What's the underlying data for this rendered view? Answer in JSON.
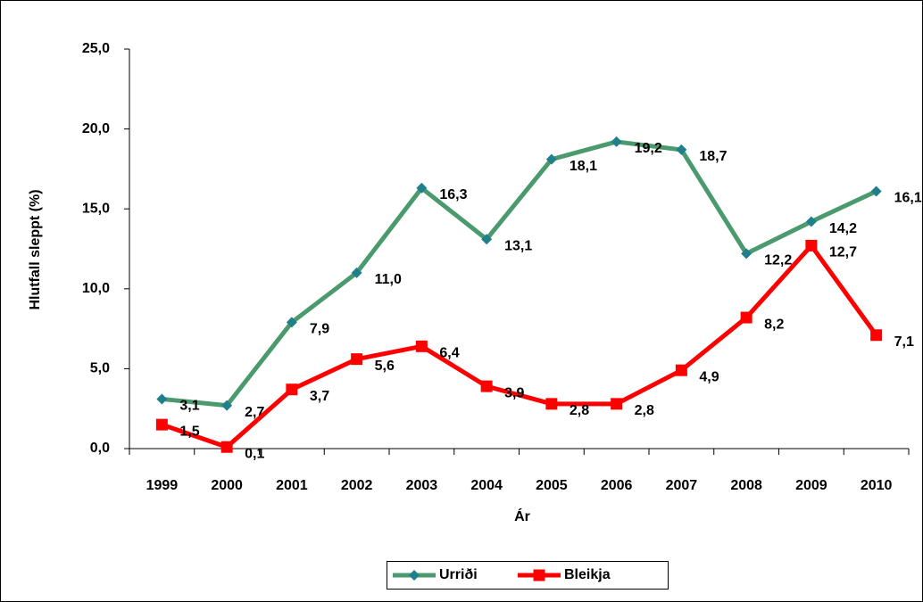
{
  "chart_data": {
    "type": "line",
    "x_label": "Ár",
    "y_label": "Hlutfall sleppt (%)",
    "categories": [
      "1999",
      "2000",
      "2001",
      "2002",
      "2003",
      "2004",
      "2005",
      "2006",
      "2007",
      "2008",
      "2009",
      "2010"
    ],
    "series": [
      {
        "name": "Urriði",
        "color": "#4a9a6e",
        "marker_color": "#1f7f8a",
        "marker": "diamond",
        "values": [
          3.1,
          2.7,
          7.9,
          11.0,
          16.3,
          13.1,
          18.1,
          19.2,
          18.7,
          12.2,
          14.2,
          16.1
        ],
        "value_labels": [
          "3,1",
          "2,7",
          "7,9",
          "11,0",
          "16,3",
          "13,1",
          "18,1",
          "19,2",
          "18,7",
          "12,2",
          "14,2",
          "16,1"
        ]
      },
      {
        "name": "Bleikja",
        "color": "#ff0000",
        "marker_color": "#ff0000",
        "marker": "square",
        "values": [
          1.5,
          0.1,
          3.7,
          5.6,
          6.4,
          3.9,
          2.8,
          2.8,
          4.9,
          8.2,
          12.7,
          7.1
        ],
        "value_labels": [
          "1,5",
          "0,1",
          "3,7",
          "5,6",
          "6,4",
          "3,9",
          "2,8",
          "2,8",
          "4,9",
          "8,2",
          "12,7",
          "7,1"
        ]
      }
    ],
    "ylim": [
      0,
      25
    ],
    "yticks": [
      {
        "value": 0,
        "label": "0,0"
      },
      {
        "value": 5,
        "label": "5,0"
      },
      {
        "value": 10,
        "label": "10,0"
      },
      {
        "value": 15,
        "label": "15,0"
      },
      {
        "value": 20,
        "label": "20,0"
      },
      {
        "value": 25,
        "label": "25,0"
      }
    ],
    "legend": "bottom"
  }
}
